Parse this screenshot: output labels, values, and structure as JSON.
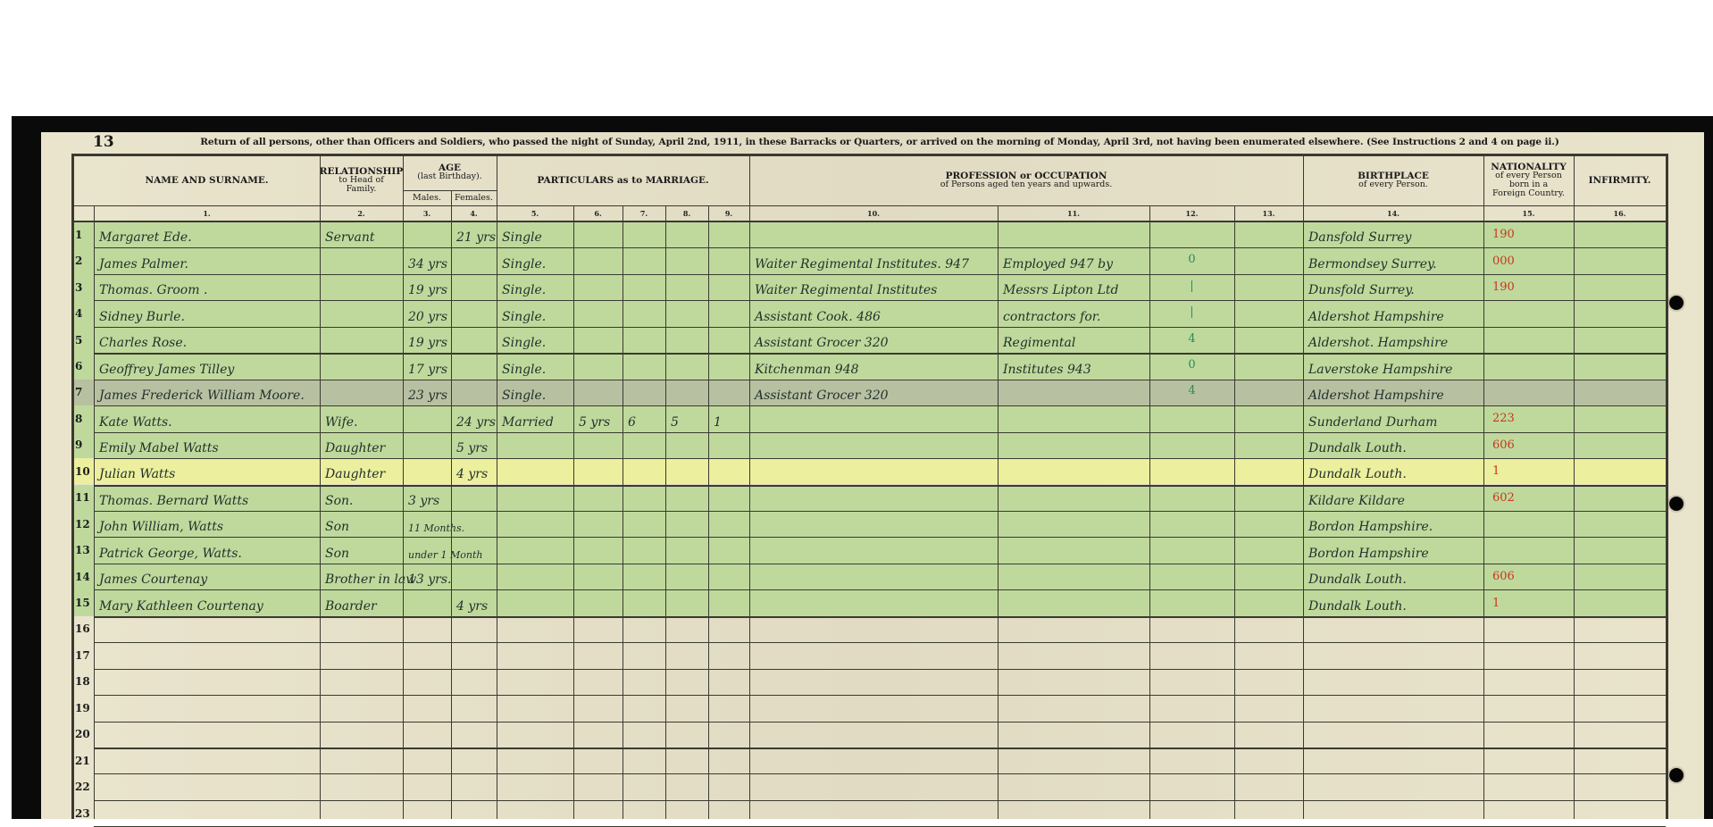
{
  "header": {
    "page_number": "13",
    "title": "Return of all persons, other than Officers and Soldiers, who passed the night of Sunday, April 2nd, 1911, in these Barracks or Quarters, or arrived on the morning of Monday, April 3rd, not having been enumerated elsewhere.  (See Instructions 2 and 4 on page ii.)"
  },
  "columns": {
    "name": "NAME AND SURNAME.",
    "relationship_1": "RELATIONSHIP",
    "relationship_2": "to Head of",
    "relationship_3": "Family.",
    "age_1": "AGE",
    "age_2": "(last Birthday).",
    "males": "Males.",
    "females": "Females.",
    "marriage": "PARTICULARS as to MARRIAGE.",
    "profession_1": "PROFESSION or OCCUPATION",
    "profession_2": "of Persons aged ten years and upwards.",
    "birthplace_1": "BIRTHPLACE",
    "birthplace_2": "of every Person.",
    "nationality_1": "NATIONALITY",
    "nationality_2": "of every Person",
    "nationality_3": "born in a",
    "nationality_4": "Foreign Country.",
    "infirmity": "INFIRMITY.",
    "numbers": [
      "1.",
      "2.",
      "3.",
      "4.",
      "5.",
      "6.",
      "7.",
      "8.",
      "9.",
      "10.",
      "11.",
      "12.",
      "13.",
      "14.",
      "15.",
      "16."
    ]
  },
  "colors": {
    "paper": "#e8e2c9",
    "highlight": "#bfd99d",
    "selected_row": "#ecef9e",
    "ink": "#22302a",
    "red_code": "#c8361c",
    "pencil": "#2b8a58"
  },
  "selected_row": 10,
  "rows": [
    {
      "no": "1",
      "name": "Margaret Ede.",
      "relationship": "Servant",
      "age_male": "",
      "age_female": "21 yrs",
      "marriage": "Single",
      "birthplace": "Dansfold Surrey",
      "nationality": "190"
    },
    {
      "no": "2",
      "name": "James Palmer.",
      "relationship": "",
      "age_male": "34 yrs",
      "age_female": "",
      "marriage": "Single.",
      "occupation": "Waiter Regimental Institutes. 947",
      "occupation_detail": "Employed 947 by",
      "col12": "0",
      "birthplace": "Bermondsey Surrey.",
      "nationality": "000"
    },
    {
      "no": "3",
      "name": "Thomas. Groom .",
      "relationship": "",
      "age_male": "19 yrs",
      "age_female": "",
      "marriage": "Single.",
      "occupation": "Waiter Regimental Institutes",
      "occupation_detail": "Messrs Lipton Ltd",
      "col12": "|",
      "birthplace": "Dunsfold Surrey.",
      "nationality": "190"
    },
    {
      "no": "4",
      "name": "Sidney Burle.",
      "relationship": "",
      "age_male": "20 yrs",
      "age_female": "",
      "marriage": "Single.",
      "occupation": "Assistant Cook. 486",
      "occupation_detail": "contractors for.",
      "col12": "|",
      "birthplace": "Aldershot Hampshire"
    },
    {
      "no": "5",
      "name": "Charles Rose.",
      "relationship": "",
      "age_male": "19 yrs",
      "age_female": "",
      "marriage": "Single.",
      "occupation": "Assistant Grocer 320",
      "occupation_detail": "Regimental",
      "col12": "4",
      "birthplace": "Aldershot. Hampshire"
    },
    {
      "no": "6",
      "name": "Geoffrey James Tilley",
      "relationship": "",
      "age_male": "17 yrs",
      "age_female": "",
      "marriage": "Single.",
      "occupation": "Kitchenman 948",
      "occupation_detail": "Institutes 943",
      "col12": "0",
      "birthplace": "Laverstoke Hampshire"
    },
    {
      "no": "7",
      "name": "James Frederick William Moore.",
      "relationship": "",
      "age_male": "23 yrs",
      "age_female": "",
      "marriage": "Single.",
      "occupation": "Assistant Grocer 320",
      "col12": "4",
      "birthplace": "Aldershot Hampshire"
    },
    {
      "no": "8",
      "name": "Kate Watts.",
      "relationship": "Wife.",
      "age_male": "",
      "age_female": "24 yrs",
      "marriage": "Married",
      "years_married": "5 yrs",
      "children_born": "6",
      "children_living": "5",
      "children_died": "1",
      "birthplace": "Sunderland Durham",
      "nationality": "223"
    },
    {
      "no": "9",
      "name": "Emily Mabel Watts",
      "relationship": "Daughter",
      "age_male": "",
      "age_female": "5 yrs",
      "birthplace": "Dundalk Louth.",
      "nationality": "606"
    },
    {
      "no": "10",
      "name": "Julian Watts",
      "relationship": "Daughter",
      "age_male": "",
      "age_female": "4 yrs",
      "birthplace": "Dundalk Louth.",
      "nationality": "1"
    },
    {
      "no": "11",
      "name": "Thomas. Bernard Watts",
      "relationship": "Son.",
      "age_male": "3 yrs",
      "age_female": "",
      "birthplace": "Kildare Kildare",
      "nationality": "602"
    },
    {
      "no": "12",
      "name": "John William, Watts",
      "relationship": "Son",
      "age_male": "11 Months.",
      "age_female": "",
      "birthplace": "Bordon Hampshire.",
      "nationality": ""
    },
    {
      "no": "13",
      "name": "Patrick George, Watts.",
      "relationship": "Son",
      "age_male": "under 1 Month",
      "age_female": "",
      "birthplace": "Bordon Hampshire",
      "nationality": ""
    },
    {
      "no": "14",
      "name": "James Courtenay",
      "relationship": "Brother in law",
      "age_male": "13 yrs.",
      "age_female": "",
      "birthplace": "Dundalk Louth.",
      "nationality": "606"
    },
    {
      "no": "15",
      "name": "Mary Kathleen Courtenay",
      "relationship": "Boarder",
      "age_male": "",
      "age_female": "4 yrs",
      "birthplace": "Dundalk Louth.",
      "nationality": "1"
    },
    {
      "no": "16"
    },
    {
      "no": "17"
    },
    {
      "no": "18"
    },
    {
      "no": "19"
    },
    {
      "no": "20"
    },
    {
      "no": "21"
    },
    {
      "no": "22"
    },
    {
      "no": "23"
    }
  ]
}
